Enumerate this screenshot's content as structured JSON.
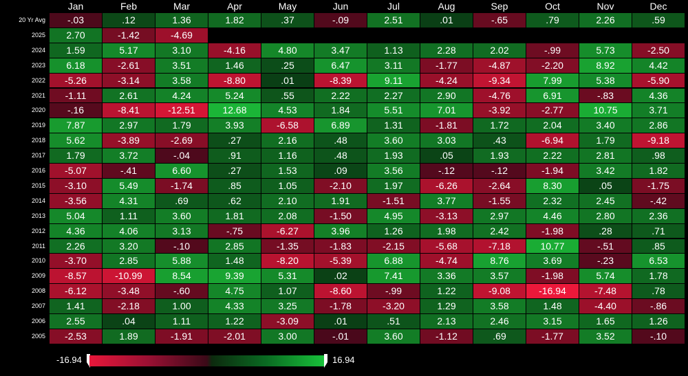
{
  "months": [
    "Jan",
    "Feb",
    "Mar",
    "Apr",
    "May",
    "Jun",
    "Jul",
    "Aug",
    "Sep",
    "Oct",
    "Nov",
    "Dec"
  ],
  "rows": [
    {
      "label": "20 Yr Avg",
      "values": [
        -0.03,
        0.12,
        1.36,
        1.82,
        0.37,
        -0.09,
        2.51,
        0.01,
        -0.65,
        0.79,
        2.26,
        0.59
      ]
    },
    {
      "label": "2025",
      "values": [
        2.7,
        -1.42,
        -4.69,
        null,
        null,
        null,
        null,
        null,
        null,
        null,
        null,
        null
      ]
    },
    {
      "label": "2024",
      "values": [
        1.59,
        5.17,
        3.1,
        -4.16,
        4.8,
        3.47,
        1.13,
        2.28,
        2.02,
        -0.99,
        5.73,
        -2.5
      ]
    },
    {
      "label": "2023",
      "values": [
        6.18,
        -2.61,
        3.51,
        1.46,
        0.25,
        6.47,
        3.11,
        -1.77,
        -4.87,
        -2.2,
        8.92,
        4.42
      ]
    },
    {
      "label": "2022",
      "values": [
        -5.26,
        -3.14,
        3.58,
        -8.8,
        0.01,
        -8.39,
        9.11,
        -4.24,
        -9.34,
        7.99,
        5.38,
        -5.9
      ]
    },
    {
      "label": "2021",
      "values": [
        -1.11,
        2.61,
        4.24,
        5.24,
        0.55,
        2.22,
        2.27,
        2.9,
        -4.76,
        6.91,
        -0.83,
        4.36
      ]
    },
    {
      "label": "2020",
      "values": [
        -0.16,
        -8.41,
        -12.51,
        12.68,
        4.53,
        1.84,
        5.51,
        7.01,
        -3.92,
        -2.77,
        10.75,
        3.71
      ]
    },
    {
      "label": "2019",
      "values": [
        7.87,
        2.97,
        1.79,
        3.93,
        -6.58,
        6.89,
        1.31,
        -1.81,
        1.72,
        2.04,
        3.4,
        2.86
      ]
    },
    {
      "label": "2018",
      "values": [
        5.62,
        -3.89,
        -2.69,
        0.27,
        2.16,
        0.48,
        3.6,
        3.03,
        0.43,
        -6.94,
        1.79,
        -9.18
      ]
    },
    {
      "label": "2017",
      "values": [
        1.79,
        3.72,
        -0.04,
        0.91,
        1.16,
        0.48,
        1.93,
        0.05,
        1.93,
        2.22,
        2.81,
        0.98
      ]
    },
    {
      "label": "2016",
      "values": [
        -5.07,
        -0.41,
        6.6,
        0.27,
        1.53,
        0.09,
        3.56,
        -0.12,
        -0.12,
        -1.94,
        3.42,
        1.82
      ]
    },
    {
      "label": "2015",
      "values": [
        -3.1,
        5.49,
        -1.74,
        0.85,
        1.05,
        -2.1,
        1.97,
        -6.26,
        -2.64,
        8.3,
        0.05,
        -1.75
      ]
    },
    {
      "label": "2014",
      "values": [
        -3.56,
        4.31,
        0.69,
        0.62,
        2.1,
        1.91,
        -1.51,
        3.77,
        -1.55,
        2.32,
        2.45,
        -0.42
      ]
    },
    {
      "label": "2013",
      "values": [
        5.04,
        1.11,
        3.6,
        1.81,
        2.08,
        -1.5,
        4.95,
        -3.13,
        2.97,
        4.46,
        2.8,
        2.36
      ]
    },
    {
      "label": "2012",
      "values": [
        4.36,
        4.06,
        3.13,
        -0.75,
        -6.27,
        3.96,
        1.26,
        1.98,
        2.42,
        -1.98,
        0.28,
        0.71
      ]
    },
    {
      "label": "2011",
      "values": [
        2.26,
        3.2,
        -0.1,
        2.85,
        -1.35,
        -1.83,
        -2.15,
        -5.68,
        -7.18,
        10.77,
        -0.51,
        0.85
      ]
    },
    {
      "label": "2010",
      "values": [
        -3.7,
        2.85,
        5.88,
        1.48,
        -8.2,
        -5.39,
        6.88,
        -4.74,
        8.76,
        3.69,
        -0.23,
        6.53
      ]
    },
    {
      "label": "2009",
      "values": [
        -8.57,
        -10.99,
        8.54,
        9.39,
        5.31,
        0.02,
        7.41,
        3.36,
        3.57,
        -1.98,
        5.74,
        1.78
      ]
    },
    {
      "label": "2008",
      "values": [
        -6.12,
        -3.48,
        -0.6,
        4.75,
        1.07,
        -8.6,
        -0.99,
        1.22,
        -9.08,
        -16.94,
        -7.48,
        0.78
      ]
    },
    {
      "label": "2007",
      "values": [
        1.41,
        -2.18,
        1.0,
        4.33,
        3.25,
        -1.78,
        -3.2,
        1.29,
        3.58,
        1.48,
        -4.4,
        -0.86
      ]
    },
    {
      "label": "2006",
      "values": [
        2.55,
        0.04,
        1.11,
        1.22,
        -3.09,
        0.01,
        0.51,
        2.13,
        2.46,
        3.15,
        1.65,
        1.26
      ]
    },
    {
      "label": "2005",
      "values": [
        -2.53,
        1.89,
        -1.91,
        -2.01,
        3.0,
        -0.01,
        3.6,
        -1.12,
        0.69,
        -1.77,
        3.52,
        -0.1
      ]
    }
  ],
  "legend": {
    "min_label": "-16.94",
    "max_label": "16.94",
    "min": -16.94,
    "max": 16.94
  },
  "colors": {
    "neg_strong": "#ea1e3e",
    "neg_dark": "#5a0c1e",
    "pos_dark": "#0c4a16",
    "pos_strong": "#1cc43c",
    "background": "#000000"
  }
}
